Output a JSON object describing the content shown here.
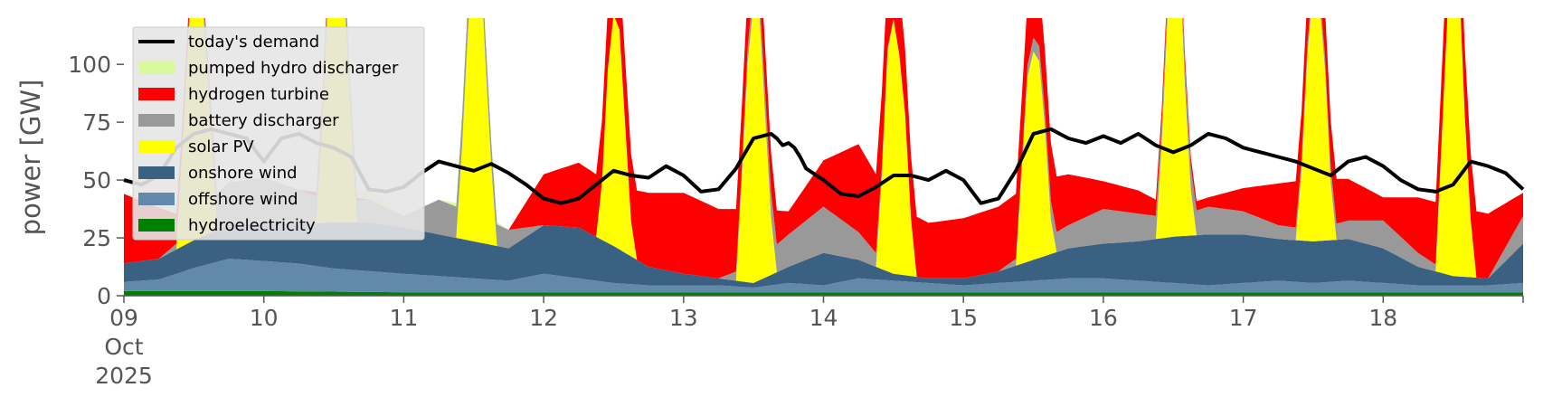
{
  "chart_data": {
    "type": "area",
    "ylabel": "power [GW]",
    "ylim": [
      0,
      120
    ],
    "xlim": [
      "2025-10-09T00:00",
      "2025-10-19T00:00"
    ],
    "x_tick_labels": [
      {
        "date": "2025-10-09",
        "lines": [
          "09",
          "Oct",
          "2025"
        ]
      },
      {
        "date": "2025-10-10",
        "lines": [
          "10"
        ]
      },
      {
        "date": "2025-10-11",
        "lines": [
          "11"
        ]
      },
      {
        "date": "2025-10-12",
        "lines": [
          "12"
        ]
      },
      {
        "date": "2025-10-13",
        "lines": [
          "13"
        ]
      },
      {
        "date": "2025-10-14",
        "lines": [
          "14"
        ]
      },
      {
        "date": "2025-10-15",
        "lines": [
          "15"
        ]
      },
      {
        "date": "2025-10-16",
        "lines": [
          "16"
        ]
      },
      {
        "date": "2025-10-17",
        "lines": [
          "17"
        ]
      },
      {
        "date": "2025-10-18",
        "lines": [
          "18"
        ]
      }
    ],
    "y_ticks": [
      0,
      25,
      50,
      75,
      100
    ],
    "legend_position": "top-left",
    "grid": false,
    "stack_order": [
      "hydroelectricity",
      "offshore wind",
      "onshore wind",
      "solar PV",
      "battery discharger",
      "hydrogen turbine",
      "pumped hydro discharger"
    ],
    "legend_entries": [
      {
        "label": "today's demand",
        "color": "#000000",
        "kind": "line"
      },
      {
        "label": "pumped hydro discharger",
        "color": "#d9f99a",
        "kind": "patch"
      },
      {
        "label": "hydrogen turbine",
        "color": "#ff0000",
        "kind": "patch"
      },
      {
        "label": "battery discharger",
        "color": "#999999",
        "kind": "patch"
      },
      {
        "label": "solar PV",
        "color": "#ffff00",
        "kind": "patch"
      },
      {
        "label": "onshore wind",
        "color": "#3b6182",
        "kind": "patch"
      },
      {
        "label": "offshore wind",
        "color": "#6288aa",
        "kind": "patch"
      },
      {
        "label": "hydroelectricity",
        "color": "#008000",
        "kind": "patch"
      }
    ],
    "series": [
      {
        "name": "hydroelectricity",
        "color": "#008000",
        "times": [
          0,
          24,
          48,
          72,
          96,
          120,
          144,
          168,
          192,
          216,
          240
        ],
        "values": [
          2,
          2,
          1.5,
          1.5,
          1.5,
          1.5,
          1.5,
          1.5,
          1.5,
          1.5,
          1.5
        ]
      },
      {
        "name": "offshore wind",
        "color": "#6288aa",
        "times": [
          0,
          6,
          12,
          18,
          24,
          30,
          36,
          42,
          48,
          54,
          60,
          66,
          72,
          78,
          84,
          90,
          96,
          102,
          108,
          114,
          120,
          126,
          132,
          138,
          144,
          150,
          156,
          162,
          168,
          174,
          180,
          186,
          192,
          198,
          204,
          210,
          216,
          222,
          228,
          234,
          240
        ],
        "values": [
          4,
          5,
          10,
          14,
          13,
          12,
          10,
          9,
          8,
          7,
          6,
          5,
          8,
          6,
          4,
          3,
          3,
          3,
          2,
          4,
          3,
          6,
          5,
          4,
          3,
          4,
          5,
          6,
          6,
          5,
          4,
          3,
          4,
          5,
          4,
          5,
          4,
          3,
          3,
          3,
          4
        ]
      },
      {
        "name": "onshore wind",
        "color": "#3b6182",
        "times": [
          0,
          6,
          12,
          18,
          24,
          30,
          36,
          42,
          48,
          54,
          60,
          66,
          72,
          78,
          84,
          90,
          96,
          102,
          108,
          114,
          120,
          126,
          132,
          138,
          144,
          150,
          156,
          162,
          168,
          174,
          180,
          186,
          192,
          198,
          204,
          210,
          216,
          222,
          228,
          234,
          240
        ],
        "values": [
          8,
          9,
          12,
          15,
          16,
          17,
          20,
          21,
          20,
          18,
          16,
          14,
          21,
          22,
          16,
          8,
          5,
          3,
          2,
          7,
          14,
          8,
          3,
          2,
          3,
          5,
          9,
          13,
          15,
          17,
          20,
          22,
          21,
          18,
          18,
          18,
          15,
          8,
          4,
          3,
          17
        ]
      },
      {
        "name": "solar PV",
        "color": "#ffff00",
        "times": [
          0,
          6,
          9,
          10,
          11,
          12,
          13,
          14,
          15,
          16,
          18,
          24,
          30,
          33,
          34,
          35,
          36,
          37,
          38,
          39,
          40,
          42,
          48,
          54,
          57,
          58,
          59,
          60,
          61,
          62,
          63,
          64,
          66,
          72,
          78,
          81,
          82,
          83,
          84,
          85,
          86,
          87,
          88,
          90,
          96,
          102,
          105,
          106,
          107,
          108,
          109,
          110,
          111,
          112,
          114,
          120,
          126,
          129,
          130,
          131,
          132,
          133,
          134,
          135,
          136,
          138,
          144,
          150,
          153,
          154,
          155,
          156,
          157,
          158,
          159,
          160,
          162,
          168,
          174,
          177,
          178,
          179,
          180,
          181,
          182,
          183,
          184,
          186,
          192,
          198,
          201,
          202,
          203,
          204,
          205,
          206,
          207,
          208,
          210,
          216,
          222,
          225,
          226,
          227,
          228,
          229,
          230,
          231,
          232,
          234,
          240
        ],
        "values": [
          0,
          0,
          0,
          40,
          85,
          130,
          125,
          80,
          40,
          0,
          0,
          0,
          0,
          0,
          40,
          95,
          130,
          125,
          90,
          40,
          0,
          0,
          0,
          0,
          0,
          40,
          90,
          125,
          130,
          80,
          35,
          0,
          0,
          0,
          0,
          0,
          25,
          75,
          100,
          95,
          55,
          15,
          0,
          0,
          0,
          0,
          0,
          45,
          95,
          120,
          115,
          70,
          25,
          0,
          0,
          0,
          0,
          0,
          40,
          95,
          110,
          95,
          70,
          25,
          0,
          0,
          0,
          0,
          0,
          40,
          80,
          90,
          85,
          55,
          15,
          0,
          0,
          0,
          0,
          0,
          40,
          95,
          130,
          125,
          65,
          20,
          0,
          0,
          0,
          0,
          0,
          30,
          80,
          110,
          105,
          75,
          25,
          0,
          0,
          0,
          0,
          0,
          55,
          110,
          140,
          130,
          70,
          25,
          0,
          0,
          0
        ]
      },
      {
        "name": "battery discharger",
        "color": "#999999",
        "times": [
          0,
          6,
          12,
          18,
          24,
          30,
          36,
          42,
          48,
          54,
          60,
          66,
          72,
          78,
          84,
          90,
          96,
          102,
          108,
          114,
          120,
          126,
          132,
          138,
          144,
          150,
          156,
          162,
          168,
          174,
          180,
          186,
          192,
          198,
          204,
          210,
          216,
          222,
          228,
          234,
          240
        ],
        "values": [
          0,
          0,
          5,
          18,
          20,
          15,
          8,
          10,
          5,
          15,
          12,
          8,
          0,
          0,
          0,
          0,
          0,
          0,
          8,
          14,
          20,
          12,
          0,
          0,
          0,
          0,
          6,
          10,
          15,
          12,
          8,
          12,
          10,
          6,
          5,
          8,
          12,
          6,
          0,
          0,
          12
        ]
      },
      {
        "name": "hydrogen turbine",
        "color": "#ff0000",
        "times": [
          0,
          6,
          12,
          18,
          24,
          30,
          36,
          42,
          48,
          54,
          60,
          66,
          72,
          78,
          84,
          90,
          96,
          102,
          108,
          114,
          120,
          126,
          132,
          138,
          144,
          150,
          156,
          162,
          168,
          174,
          180,
          186,
          192,
          198,
          204,
          210,
          216,
          222,
          228,
          234,
          240
        ],
        "values": [
          30,
          22,
          4,
          0,
          0,
          0,
          4,
          0,
          0,
          0,
          0,
          0,
          22,
          28,
          26,
          32,
          35,
          30,
          24,
          10,
          20,
          38,
          30,
          24,
          26,
          28,
          28,
          22,
          12,
          10,
          4,
          4,
          10,
          18,
          22,
          18,
          10,
          24,
          30,
          28,
          10
        ]
      },
      {
        "name": "pumped hydro discharger",
        "color": "#d9f99a",
        "times": [
          0,
          6,
          12,
          18,
          24,
          30,
          36,
          42,
          48,
          54,
          60,
          66,
          72,
          78,
          84,
          90,
          96,
          102,
          108,
          114,
          120,
          126,
          132,
          138,
          144,
          150,
          156,
          162,
          168,
          174,
          180,
          186,
          192,
          198,
          204,
          210,
          216,
          222,
          228,
          234,
          240
        ],
        "values": [
          0,
          0,
          0,
          0,
          0,
          0,
          0,
          4,
          0,
          0,
          3,
          0,
          0,
          0,
          0,
          0,
          0,
          0,
          0,
          0,
          0,
          0,
          0,
          0,
          0,
          0,
          0,
          0,
          0,
          0,
          0,
          0,
          0,
          0,
          0,
          0,
          0,
          0,
          0,
          0,
          0
        ]
      },
      {
        "name": "today's demand",
        "color": "#000000",
        "line_times": [
          0,
          3,
          6,
          9,
          12,
          15,
          18,
          21,
          24,
          27,
          30,
          33,
          36,
          39,
          42,
          45,
          48,
          51,
          54,
          57,
          60,
          63,
          66,
          69,
          72,
          75,
          78,
          81,
          84,
          87,
          90,
          93,
          96,
          99,
          102,
          105,
          108,
          111,
          112,
          113,
          114,
          115,
          116,
          117,
          120,
          123,
          126,
          129,
          132,
          135,
          138,
          141,
          144,
          147,
          150,
          153,
          156,
          159,
          162,
          165,
          168,
          171,
          174,
          177,
          180,
          183,
          186,
          189,
          192,
          195,
          198,
          201,
          204,
          207,
          210,
          213,
          216,
          219,
          222,
          225,
          228,
          231,
          234,
          237,
          240
        ],
        "values": [
          50,
          48,
          52,
          64,
          70,
          72,
          70,
          68,
          58,
          68,
          70,
          66,
          64,
          60,
          46,
          45,
          47,
          53,
          58,
          56,
          54,
          57,
          53,
          48,
          42,
          40,
          42,
          48,
          54,
          52,
          51,
          56,
          52,
          45,
          46,
          55,
          68,
          70,
          68,
          65,
          66,
          64,
          60,
          55,
          50,
          44,
          43,
          47,
          52,
          52,
          50,
          54,
          50,
          40,
          42,
          54,
          70,
          72,
          68,
          66,
          69,
          66,
          70,
          65,
          62,
          65,
          70,
          68,
          64,
          62,
          60,
          58,
          55,
          52,
          58,
          60,
          56,
          50,
          46,
          45,
          48,
          58,
          56,
          53,
          46
        ]
      }
    ]
  }
}
